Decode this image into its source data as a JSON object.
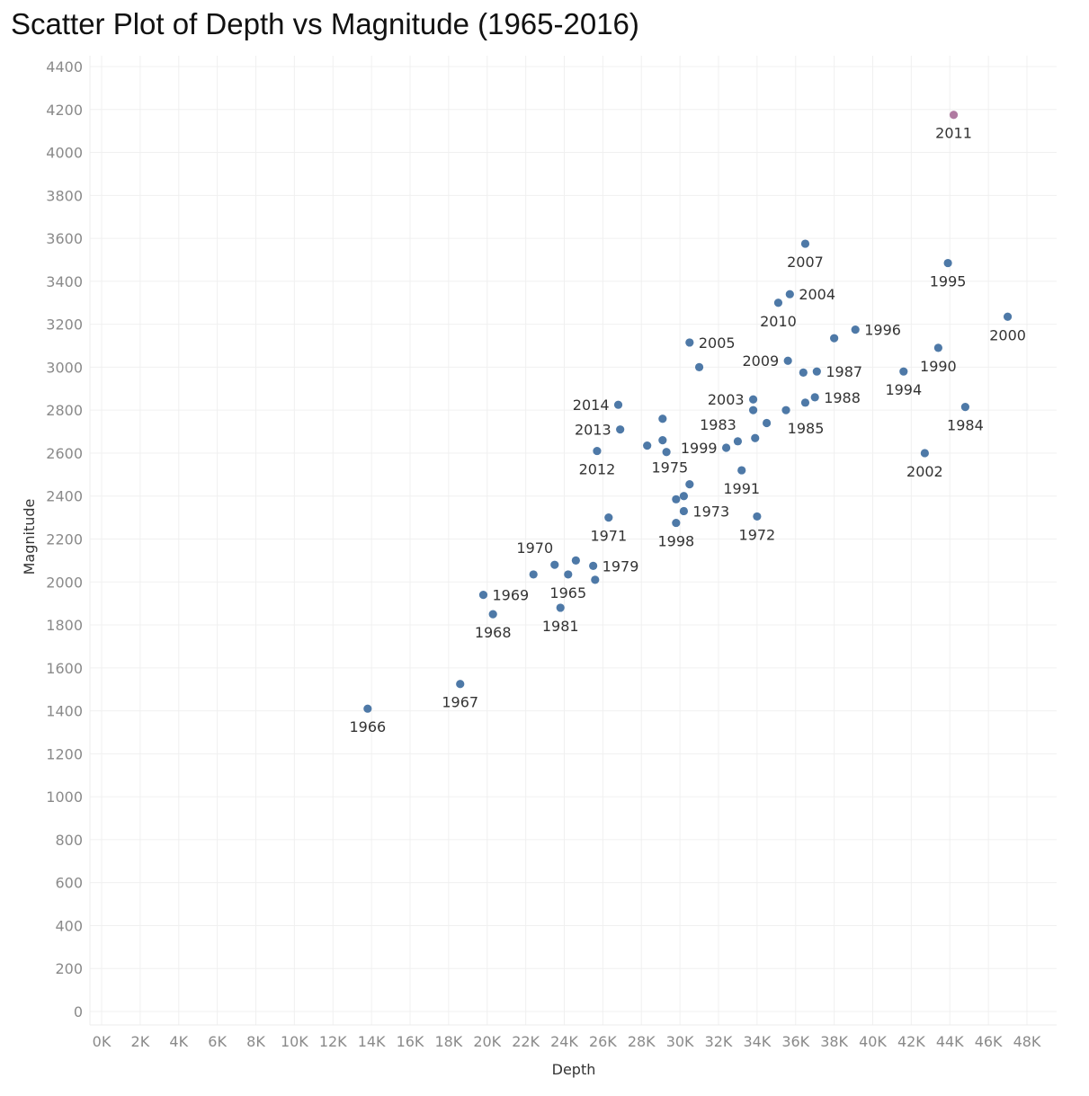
{
  "chart_data": {
    "type": "scatter",
    "title": "Scatter Plot of Depth vs Magnitude (1965-2016)",
    "xlabel": "Depth",
    "ylabel": "Magnitude",
    "xlim": [
      0,
      48000
    ],
    "ylim": [
      0,
      4400
    ],
    "grid": true,
    "x_ticks": [
      {
        "value": 0,
        "label": "0K"
      },
      {
        "value": 2000,
        "label": "2K"
      },
      {
        "value": 4000,
        "label": "4K"
      },
      {
        "value": 6000,
        "label": "6K"
      },
      {
        "value": 8000,
        "label": "8K"
      },
      {
        "value": 10000,
        "label": "10K"
      },
      {
        "value": 12000,
        "label": "12K"
      },
      {
        "value": 14000,
        "label": "14K"
      },
      {
        "value": 16000,
        "label": "16K"
      },
      {
        "value": 18000,
        "label": "18K"
      },
      {
        "value": 20000,
        "label": "20K"
      },
      {
        "value": 22000,
        "label": "22K"
      },
      {
        "value": 24000,
        "label": "24K"
      },
      {
        "value": 26000,
        "label": "26K"
      },
      {
        "value": 28000,
        "label": "28K"
      },
      {
        "value": 30000,
        "label": "30K"
      },
      {
        "value": 32000,
        "label": "32K"
      },
      {
        "value": 34000,
        "label": "34K"
      },
      {
        "value": 36000,
        "label": "36K"
      },
      {
        "value": 38000,
        "label": "38K"
      },
      {
        "value": 40000,
        "label": "40K"
      },
      {
        "value": 42000,
        "label": "42K"
      },
      {
        "value": 44000,
        "label": "44K"
      },
      {
        "value": 46000,
        "label": "46K"
      },
      {
        "value": 48000,
        "label": "48K"
      }
    ],
    "y_ticks": [
      {
        "value": 0,
        "label": "0"
      },
      {
        "value": 200,
        "label": "200"
      },
      {
        "value": 400,
        "label": "400"
      },
      {
        "value": 600,
        "label": "600"
      },
      {
        "value": 800,
        "label": "800"
      },
      {
        "value": 1000,
        "label": "1000"
      },
      {
        "value": 1200,
        "label": "1200"
      },
      {
        "value": 1400,
        "label": "1400"
      },
      {
        "value": 1600,
        "label": "1600"
      },
      {
        "value": 1800,
        "label": "1800"
      },
      {
        "value": 2000,
        "label": "2000"
      },
      {
        "value": 2200,
        "label": "2200"
      },
      {
        "value": 2400,
        "label": "2400"
      },
      {
        "value": 2600,
        "label": "2600"
      },
      {
        "value": 2800,
        "label": "2800"
      },
      {
        "value": 3000,
        "label": "3000"
      },
      {
        "value": 3200,
        "label": "3200"
      },
      {
        "value": 3400,
        "label": "3400"
      },
      {
        "value": 3600,
        "label": "3600"
      },
      {
        "value": 3800,
        "label": "3800"
      },
      {
        "value": 4000,
        "label": "4000"
      },
      {
        "value": 4200,
        "label": "4200"
      },
      {
        "value": 4400,
        "label": "4400"
      }
    ],
    "colors": {
      "default": "#4e79a7",
      "highlight": "#b07aa1"
    },
    "points": [
      {
        "x": 13800,
        "y": 1410,
        "label": "1966",
        "label_pos": "below"
      },
      {
        "x": 18600,
        "y": 1525,
        "label": "1967",
        "label_pos": "below"
      },
      {
        "x": 20300,
        "y": 1850,
        "label": "1968",
        "label_pos": "below"
      },
      {
        "x": 19800,
        "y": 1940,
        "label": "1969",
        "label_pos": "right"
      },
      {
        "x": 23800,
        "y": 1880,
        "label": "1981",
        "label_pos": "below"
      },
      {
        "x": 22400,
        "y": 2035,
        "label": "",
        "label_pos": "none"
      },
      {
        "x": 23500,
        "y": 2080,
        "label": "1970",
        "label_pos": "above-left"
      },
      {
        "x": 24200,
        "y": 2035,
        "label": "1965",
        "label_pos": "below"
      },
      {
        "x": 24600,
        "y": 2100,
        "label": "",
        "label_pos": "none"
      },
      {
        "x": 25500,
        "y": 2075,
        "label": "1979",
        "label_pos": "right"
      },
      {
        "x": 25600,
        "y": 2010,
        "label": "",
        "label_pos": "none"
      },
      {
        "x": 26300,
        "y": 2300,
        "label": "1971",
        "label_pos": "below"
      },
      {
        "x": 25700,
        "y": 2610,
        "label": "2012",
        "label_pos": "below"
      },
      {
        "x": 26900,
        "y": 2710,
        "label": "2013",
        "label_pos": "left"
      },
      {
        "x": 26800,
        "y": 2825,
        "label": "2014",
        "label_pos": "left"
      },
      {
        "x": 28300,
        "y": 2635,
        "label": "",
        "label_pos": "none"
      },
      {
        "x": 29100,
        "y": 2760,
        "label": "",
        "label_pos": "none"
      },
      {
        "x": 29100,
        "y": 2660,
        "label": "",
        "label_pos": "none"
      },
      {
        "x": 29300,
        "y": 2605,
        "label": "",
        "label_pos": "none"
      },
      {
        "x": 30500,
        "y": 3115,
        "label": "2005",
        "label_pos": "right"
      },
      {
        "x": 31000,
        "y": 3000,
        "label": "",
        "label_pos": "none"
      },
      {
        "x": 32400,
        "y": 2625,
        "label": "1999",
        "label_pos": "left"
      },
      {
        "x": 33000,
        "y": 2655,
        "label": "1983",
        "label_pos": "above-left"
      },
      {
        "x": 30500,
        "y": 2455,
        "label": "1975",
        "label_pos": "above-left"
      },
      {
        "x": 29800,
        "y": 2385,
        "label": "",
        "label_pos": "none"
      },
      {
        "x": 30200,
        "y": 2400,
        "label": "",
        "label_pos": "none"
      },
      {
        "x": 30200,
        "y": 2330,
        "label": "1973",
        "label_pos": "right"
      },
      {
        "x": 29800,
        "y": 2275,
        "label": "1998",
        "label_pos": "below"
      },
      {
        "x": 33200,
        "y": 2520,
        "label": "1991",
        "label_pos": "below"
      },
      {
        "x": 34000,
        "y": 2305,
        "label": "1972",
        "label_pos": "below"
      },
      {
        "x": 33800,
        "y": 2850,
        "label": "2003",
        "label_pos": "left"
      },
      {
        "x": 33800,
        "y": 2800,
        "label": "",
        "label_pos": "none"
      },
      {
        "x": 33900,
        "y": 2670,
        "label": "",
        "label_pos": "none"
      },
      {
        "x": 34500,
        "y": 2740,
        "label": "",
        "label_pos": "none"
      },
      {
        "x": 35500,
        "y": 2800,
        "label": "1985",
        "label_pos": "below-right"
      },
      {
        "x": 35600,
        "y": 3030,
        "label": "2009",
        "label_pos": "left"
      },
      {
        "x": 35100,
        "y": 3300,
        "label": "2010",
        "label_pos": "below"
      },
      {
        "x": 35700,
        "y": 3340,
        "label": "2004",
        "label_pos": "right"
      },
      {
        "x": 36500,
        "y": 3575,
        "label": "2007",
        "label_pos": "below"
      },
      {
        "x": 36400,
        "y": 2975,
        "label": "",
        "label_pos": "none"
      },
      {
        "x": 37100,
        "y": 2980,
        "label": "1987",
        "label_pos": "right"
      },
      {
        "x": 36500,
        "y": 2835,
        "label": "",
        "label_pos": "none"
      },
      {
        "x": 37000,
        "y": 2860,
        "label": "1988",
        "label_pos": "right"
      },
      {
        "x": 38000,
        "y": 3135,
        "label": "",
        "label_pos": "none"
      },
      {
        "x": 39100,
        "y": 3175,
        "label": "1996",
        "label_pos": "right"
      },
      {
        "x": 41600,
        "y": 2980,
        "label": "1994",
        "label_pos": "below"
      },
      {
        "x": 42700,
        "y": 2600,
        "label": "2002",
        "label_pos": "below"
      },
      {
        "x": 43400,
        "y": 3090,
        "label": "1990",
        "label_pos": "below"
      },
      {
        "x": 43900,
        "y": 3485,
        "label": "1995",
        "label_pos": "below"
      },
      {
        "x": 44200,
        "y": 4175,
        "label": "2011",
        "label_pos": "below",
        "highlight": true
      },
      {
        "x": 44800,
        "y": 2815,
        "label": "1984",
        "label_pos": "below"
      },
      {
        "x": 47000,
        "y": 3235,
        "label": "2000",
        "label_pos": "below"
      }
    ]
  }
}
